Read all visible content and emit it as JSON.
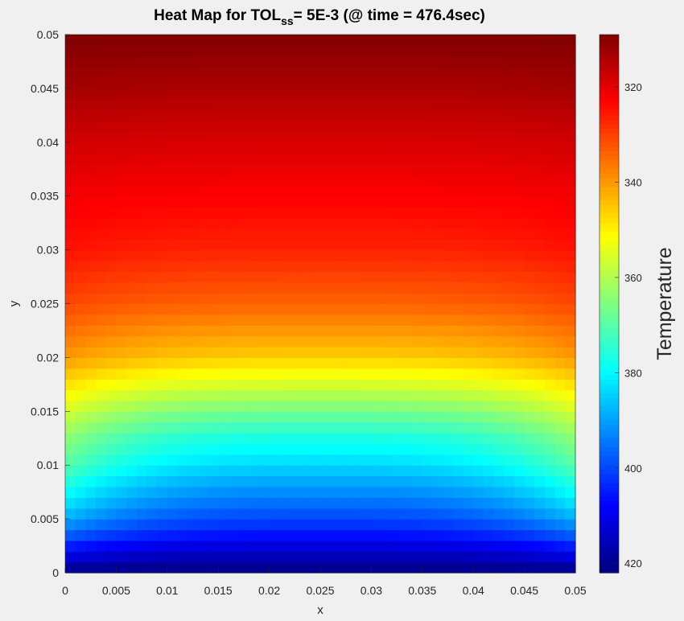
{
  "chart_data": {
    "type": "heatmap",
    "title_prefix": "Heat Map for  TOL",
    "title_subscript": "ss",
    "title_suffix": "= 5E-3  (@ time = 476.4sec)",
    "xlabel": "x",
    "ylabel": "y",
    "xlim": [
      0,
      0.05
    ],
    "ylim": [
      0,
      0.05
    ],
    "x_ticks": [
      0,
      0.005,
      0.01,
      0.015,
      0.02,
      0.025,
      0.03,
      0.035,
      0.04,
      0.045,
      0.05
    ],
    "x_tick_labels": [
      "0",
      "0.005",
      "0.01",
      "0.015",
      "0.02",
      "0.025",
      "0.03",
      "0.035",
      "0.04",
      "0.045",
      "0.05"
    ],
    "y_ticks": [
      0,
      0.005,
      0.01,
      0.015,
      0.02,
      0.025,
      0.03,
      0.035,
      0.04,
      0.045,
      0.05
    ],
    "y_tick_labels": [
      "0",
      "0.005",
      "0.01",
      "0.015",
      "0.02",
      "0.025",
      "0.03",
      "0.035",
      "0.04",
      "0.045",
      "0.05"
    ],
    "colormap": "jet",
    "colormap_reversed": true,
    "grid_cells": [
      50,
      50
    ],
    "colorbar": {
      "label": "Temperature",
      "range": [
        309,
        422
      ],
      "ticks": [
        320,
        340,
        360,
        380,
        400,
        420
      ],
      "tick_labels": [
        "320",
        "340",
        "360",
        "380",
        "400",
        "420"
      ],
      "direction": "reverse"
    },
    "field_profile": {
      "T_bottom": 422,
      "T_top": 309,
      "y": [
        0,
        0.002,
        0.004,
        0.006,
        0.008,
        0.01,
        0.0125,
        0.015,
        0.0175,
        0.02,
        0.025,
        0.03,
        0.035,
        0.04,
        0.045,
        0.05
      ],
      "T_center": [
        422,
        414,
        404,
        397,
        391,
        384,
        377,
        367,
        356,
        346,
        334,
        327,
        323,
        319,
        314,
        309
      ],
      "edge_falloff": [
        0,
        6,
        10,
        13,
        14,
        14,
        13,
        11,
        8,
        6,
        3,
        2,
        1,
        1,
        1,
        0
      ]
    }
  }
}
